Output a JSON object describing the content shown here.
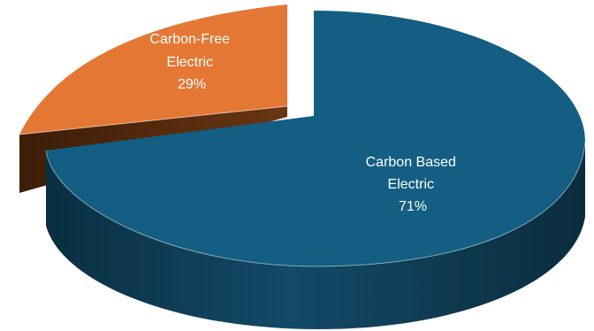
{
  "chart_data": {
    "type": "pie",
    "style": "3d-exploded",
    "slices": [
      {
        "label_lines": [
          "Carbon Based",
          "Electric"
        ],
        "value_label": "71%",
        "value": 71,
        "color": "#135E82",
        "side_color": "#0D3F58"
      },
      {
        "label_lines": [
          "Carbon-Free",
          "Electric"
        ],
        "value_label": "29%",
        "value": 29,
        "color": "#E57735",
        "side_color": "#5E2E10"
      }
    ],
    "legend": "none"
  }
}
